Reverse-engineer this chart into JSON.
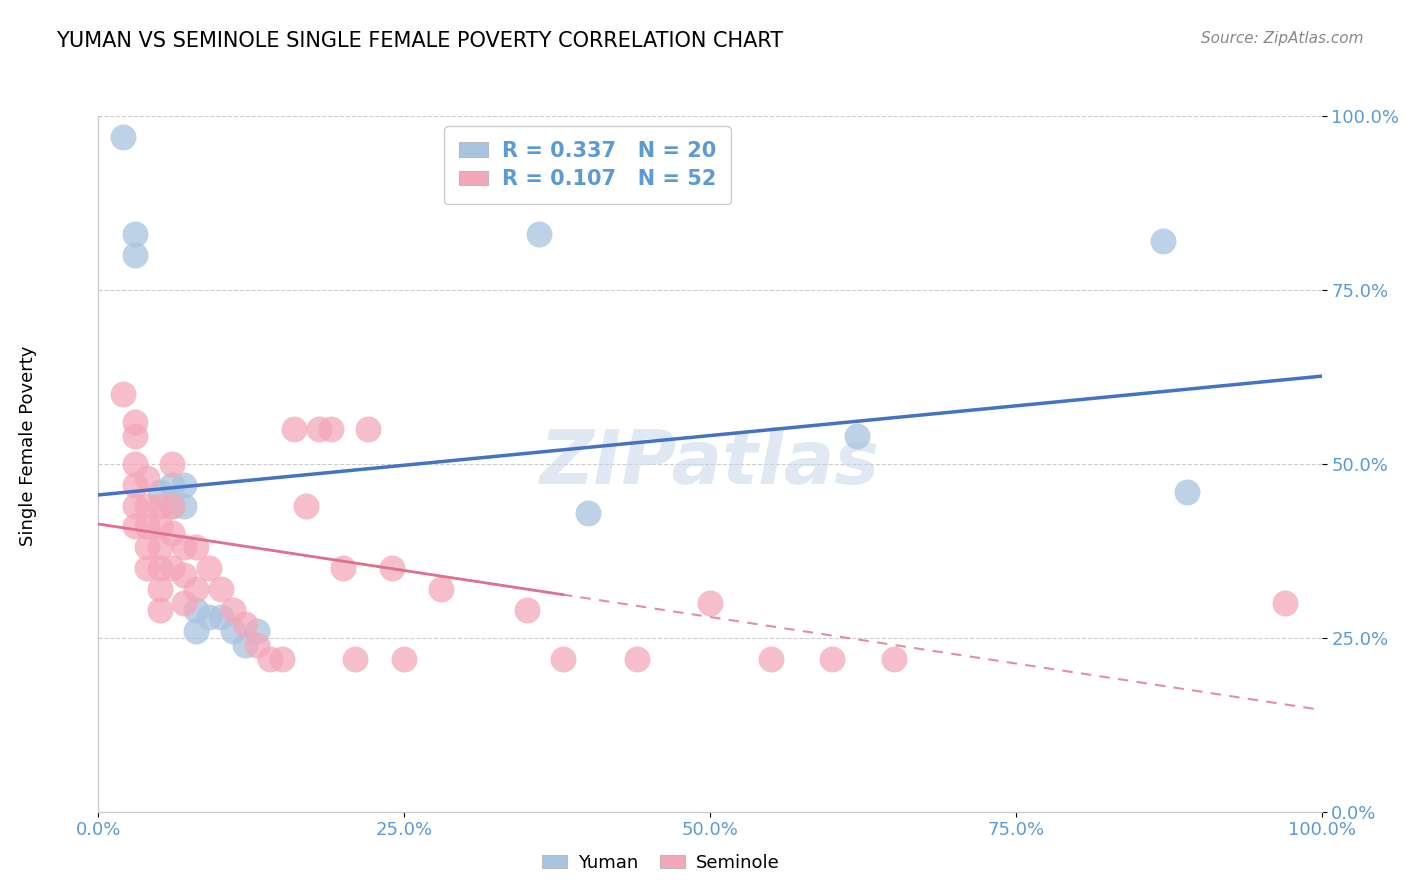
{
  "title": "YUMAN VS SEMINOLE SINGLE FEMALE POVERTY CORRELATION CHART",
  "source": "Source: ZipAtlas.com",
  "ylabel": "Single Female Poverty",
  "yuman_R": 0.337,
  "yuman_N": 20,
  "seminole_R": 0.107,
  "seminole_N": 52,
  "yuman_color": "#a8c4e0",
  "seminole_color": "#f4a7b9",
  "yuman_line_color": "#4472c4",
  "seminole_line_color": "#e07090",
  "watermark": "ZIPatlas",
  "tick_color": "#5b9bd5",
  "grid_color": "#cccccc",
  "yuman_points": [
    [
      0.02,
      0.97
    ],
    [
      0.03,
      0.83
    ],
    [
      0.03,
      0.8
    ],
    [
      0.05,
      0.46
    ],
    [
      0.06,
      0.47
    ],
    [
      0.06,
      0.44
    ],
    [
      0.07,
      0.47
    ],
    [
      0.07,
      0.44
    ],
    [
      0.08,
      0.29
    ],
    [
      0.08,
      0.26
    ],
    [
      0.09,
      0.28
    ],
    [
      0.1,
      0.28
    ],
    [
      0.11,
      0.26
    ],
    [
      0.12,
      0.24
    ],
    [
      0.13,
      0.26
    ],
    [
      0.36,
      0.83
    ],
    [
      0.4,
      0.43
    ],
    [
      0.62,
      0.54
    ],
    [
      0.87,
      0.82
    ],
    [
      0.89,
      0.46
    ]
  ],
  "seminole_points": [
    [
      0.02,
      0.6
    ],
    [
      0.03,
      0.56
    ],
    [
      0.03,
      0.54
    ],
    [
      0.03,
      0.5
    ],
    [
      0.03,
      0.47
    ],
    [
      0.03,
      0.44
    ],
    [
      0.03,
      0.41
    ],
    [
      0.04,
      0.48
    ],
    [
      0.04,
      0.44
    ],
    [
      0.04,
      0.41
    ],
    [
      0.04,
      0.38
    ],
    [
      0.04,
      0.35
    ],
    [
      0.05,
      0.44
    ],
    [
      0.05,
      0.41
    ],
    [
      0.05,
      0.38
    ],
    [
      0.05,
      0.35
    ],
    [
      0.05,
      0.32
    ],
    [
      0.05,
      0.29
    ],
    [
      0.06,
      0.5
    ],
    [
      0.06,
      0.44
    ],
    [
      0.06,
      0.4
    ],
    [
      0.06,
      0.35
    ],
    [
      0.07,
      0.38
    ],
    [
      0.07,
      0.34
    ],
    [
      0.07,
      0.3
    ],
    [
      0.08,
      0.38
    ],
    [
      0.08,
      0.32
    ],
    [
      0.09,
      0.35
    ],
    [
      0.1,
      0.32
    ],
    [
      0.11,
      0.29
    ],
    [
      0.12,
      0.27
    ],
    [
      0.13,
      0.24
    ],
    [
      0.14,
      0.22
    ],
    [
      0.15,
      0.22
    ],
    [
      0.16,
      0.55
    ],
    [
      0.17,
      0.44
    ],
    [
      0.18,
      0.55
    ],
    [
      0.19,
      0.55
    ],
    [
      0.2,
      0.35
    ],
    [
      0.21,
      0.22
    ],
    [
      0.22,
      0.55
    ],
    [
      0.24,
      0.35
    ],
    [
      0.25,
      0.22
    ],
    [
      0.28,
      0.32
    ],
    [
      0.35,
      0.29
    ],
    [
      0.38,
      0.22
    ],
    [
      0.44,
      0.22
    ],
    [
      0.5,
      0.3
    ],
    [
      0.55,
      0.22
    ],
    [
      0.6,
      0.22
    ],
    [
      0.65,
      0.22
    ],
    [
      0.97,
      0.3
    ]
  ]
}
